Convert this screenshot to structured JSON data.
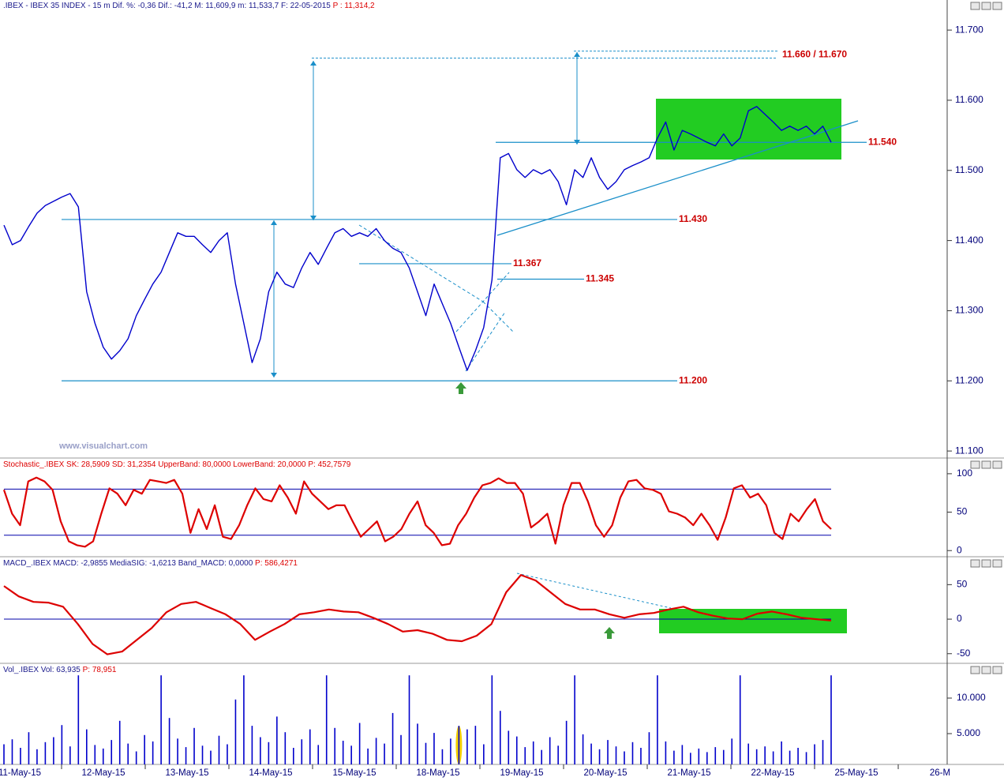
{
  "chart_data": [
    {
      "type": "line",
      "title": ".IBEX - IBEX 35 INDEX -  15 m Dif. %: -0,36 Dif.: -41,2 M: 11,609,9 m: 11,533,7 F: 22-05-2015",
      "subtitle": "P : 11,314,2",
      "color": "#0000cc",
      "values": [
        11422,
        11394,
        11400,
        11420,
        11439,
        11450,
        11456,
        11462,
        11467,
        11448,
        11327,
        11282,
        11248,
        11231,
        11243,
        11260,
        11293,
        11316,
        11338,
        11355,
        11383,
        11411,
        11406,
        11406,
        11394,
        11383,
        11400,
        11411,
        11338,
        11282,
        11226,
        11260,
        11327,
        11355,
        11338,
        11333,
        11361,
        11383,
        11366,
        11389,
        11411,
        11417,
        11406,
        11411,
        11406,
        11417,
        11400,
        11389,
        11383,
        11361,
        11327,
        11293,
        11338,
        11310,
        11282,
        11248,
        11215,
        11243,
        11276,
        11344,
        11518,
        11524,
        11501,
        11490,
        11501,
        11495,
        11501,
        11484,
        11451,
        11501,
        11490,
        11518,
        11490,
        11473,
        11484,
        11501,
        11507,
        11512,
        11518,
        11546,
        11569,
        11529,
        11557,
        11552,
        11546,
        11540,
        11535,
        11552,
        11535,
        11546,
        11585,
        11591,
        11580,
        11569,
        11557,
        11563,
        11557,
        11563,
        11552,
        11563,
        11540
      ],
      "ylim": [
        11090,
        11726
      ],
      "yticks": [
        {
          "value": 11100,
          "label": "11.100"
        },
        {
          "value": 11200,
          "label": "11.200"
        },
        {
          "value": 11300,
          "label": "11.300"
        },
        {
          "value": 11400,
          "label": "11.400"
        },
        {
          "value": 11500,
          "label": "11.500"
        },
        {
          "value": 11600,
          "label": "11.600"
        },
        {
          "value": 11700,
          "label": "11.700"
        }
      ],
      "levels": [
        {
          "value": 11430,
          "label": "11.430"
        },
        {
          "value": 11200,
          "label": "11.200"
        },
        {
          "value": 11540,
          "label": "11.540"
        },
        {
          "value": 11345,
          "label": "11.345"
        },
        {
          "value": 11367,
          "label": "11.367"
        }
      ],
      "annotations": [
        {
          "values": [
            11660,
            11670
          ],
          "label": "11.660 / 11.670"
        }
      ],
      "watermark": "www.visualchart.com"
    },
    {
      "type": "line",
      "title": "Stochastic_.IBEX SK: 28,5909 SD: 31,2354 UpperBand: 80,0000 LowerBand: 20,0000",
      "subtitle": "P: 452,7579",
      "color": "#dd0000",
      "values": [
        79,
        48,
        33,
        90,
        95,
        90,
        79,
        38,
        12,
        7,
        5,
        12,
        48,
        81,
        74,
        59,
        79,
        74,
        92,
        90,
        88,
        92,
        74,
        23,
        54,
        28,
        59,
        18,
        15,
        33,
        59,
        81,
        67,
        64,
        85,
        69,
        48,
        90,
        74,
        64,
        54,
        59,
        59,
        38,
        18,
        28,
        38,
        12,
        18,
        28,
        48,
        64,
        33,
        23,
        7,
        9,
        33,
        48,
        69,
        85,
        88,
        94,
        88,
        88,
        74,
        30,
        38,
        48,
        9,
        59,
        88,
        88,
        64,
        33,
        18,
        33,
        69,
        90,
        92,
        81,
        79,
        74,
        51,
        48,
        43,
        33,
        48,
        33,
        14,
        43,
        81,
        85,
        69,
        74,
        59,
        23,
        15,
        48,
        38,
        54,
        67,
        38,
        28
      ],
      "ylim": [
        -8,
        104
      ],
      "yticks": [
        0,
        50,
        100
      ],
      "bands": [
        80,
        20
      ]
    },
    {
      "type": "line",
      "title": "MACD_.IBEX MACD: -2,9855 MediaSIG: -1,6213 Band_MACD: 0,0000",
      "subtitle": "P: 586,4271",
      "color": "#dd0000",
      "values": [
        48,
        33,
        25,
        24,
        18,
        -7,
        -36,
        -51,
        -47,
        -30,
        -13,
        10,
        22,
        25,
        16,
        7,
        -7,
        -30,
        -18,
        -7,
        7,
        10,
        14,
        11,
        10,
        2,
        -7,
        -18,
        -16,
        -21,
        -30,
        -32,
        -24,
        -7,
        39,
        64,
        56,
        39,
        22,
        14,
        14,
        7,
        2,
        7,
        9,
        14,
        18,
        10,
        5,
        1,
        0,
        8,
        11,
        7,
        2,
        0,
        -2
      ],
      "ylim": [
        -64,
        71
      ],
      "yticks": [
        -50,
        0,
        50
      ]
    },
    {
      "type": "bar",
      "title": "Vol_.IBEX Vol: 63,935",
      "subtitle": "P: 78,951",
      "color": "#0000cc",
      "values": [
        3500,
        4200,
        3000,
        5200,
        2800,
        3800,
        4500,
        6200,
        3200,
        13200,
        5600,
        3400,
        2900,
        4100,
        6800,
        3600,
        2500,
        4800,
        3900,
        13200,
        7200,
        4300,
        3100,
        5800,
        3300,
        2600,
        4700,
        3500,
        9800,
        13200,
        6100,
        4500,
        3800,
        7400,
        5200,
        3000,
        4200,
        5600,
        3400,
        13200,
        5800,
        4000,
        3300,
        6500,
        2900,
        4400,
        3600,
        7900,
        4800,
        13200,
        6400,
        3700,
        5100,
        2800,
        4300,
        6100,
        5600,
        6100,
        3500,
        13200,
        8200,
        5400,
        4600,
        3100,
        3900,
        2700,
        4500,
        3300,
        6800,
        13200,
        4900,
        3600,
        2800,
        4100,
        3200,
        2500,
        3800,
        3000,
        5200,
        13200,
        3900,
        2600,
        3400,
        2300,
        2900,
        2400,
        3100,
        2700,
        4300,
        13200,
        3600,
        2800,
        3200,
        2500,
        3900,
        2600,
        3000,
        2400,
        3500,
        4100,
        13200
      ],
      "highlight": {
        "index": 55,
        "color": "#f5d000"
      },
      "ylim": [
        667,
        13222
      ],
      "yticks": [
        {
          "value": 5000,
          "label": "5.000"
        },
        {
          "value": 10000,
          "label": "10.000"
        }
      ]
    }
  ],
  "time_axis": [
    "11-May-15",
    "12-May-15",
    "13-May-15",
    "14-May-15",
    "15-May-15",
    "18-May-15",
    "19-May-15",
    "20-May-15",
    "21-May-15",
    "22-May-15",
    "25-May-15",
    "26-M"
  ]
}
